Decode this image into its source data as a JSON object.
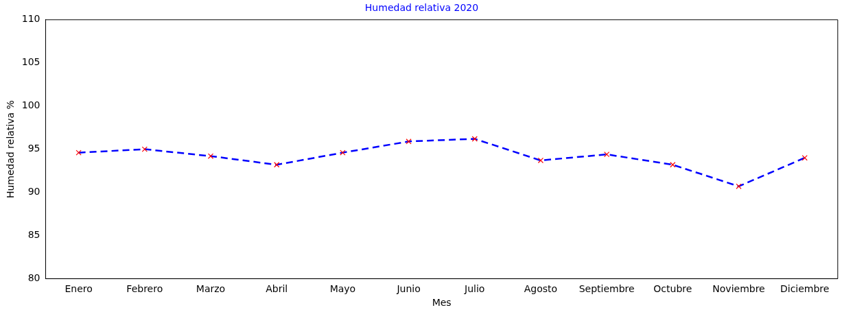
{
  "chart_data": {
    "type": "line",
    "title": "Humedad relativa 2020",
    "xlabel": "Mes",
    "ylabel": "Humedad relativa %",
    "categories": [
      "Enero",
      "Febrero",
      "Marzo",
      "Abril",
      "Mayo",
      "Junio",
      "Julio",
      "Agosto",
      "Septiembre",
      "Octubre",
      "Noviembre",
      "Diciembre"
    ],
    "series": [
      {
        "color": "#0000ff",
        "colors": [
          "#ff0000",
          "#ff0000",
          "#ff0000",
          "#ff0000",
          "#ff0000",
          "#ff0000",
          "#ff0000",
          "#ff0000",
          "#ff0000",
          "#ff0000",
          "#ff0000",
          "#ff0000"
        ],
        "values": [
          94.6,
          95.0,
          94.2,
          93.2,
          94.6,
          95.9,
          96.2,
          93.7,
          94.4,
          93.2,
          90.7,
          94.0
        ]
      }
    ],
    "ylim": [
      80,
      110
    ],
    "yticks": [
      80,
      85,
      90,
      95,
      100,
      105,
      110
    ],
    "grid": false,
    "legend": false,
    "marker": "cross",
    "line_style": "dashed"
  }
}
